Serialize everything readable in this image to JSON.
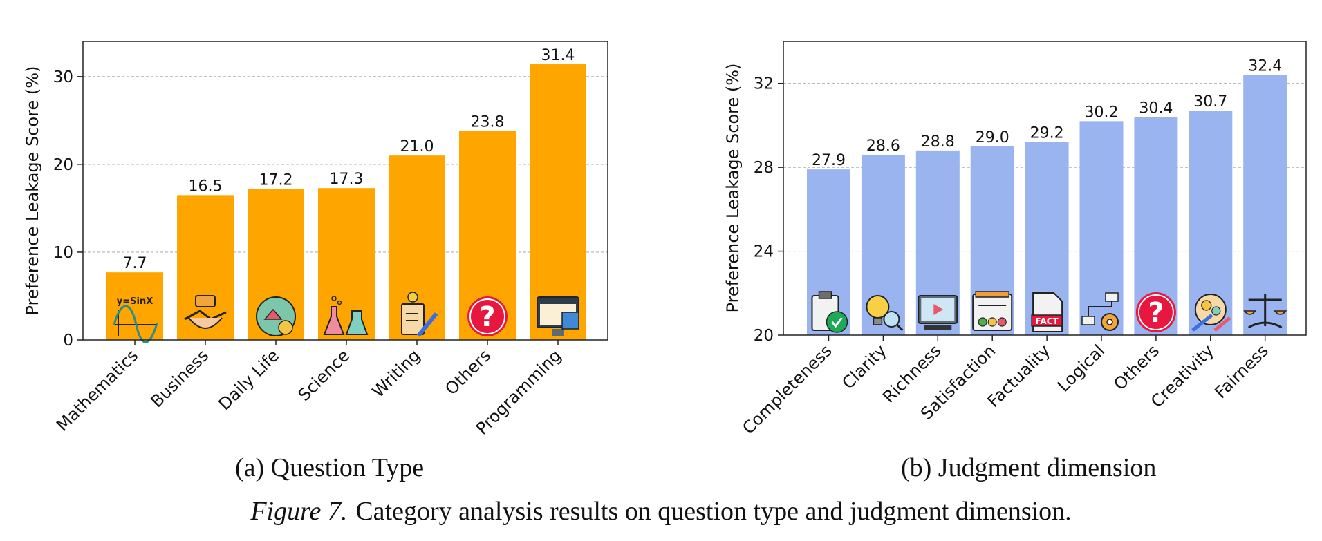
{
  "figure": {
    "sub_a": "(a)  Question Type",
    "sub_b": "(b)  Judgment dimension",
    "caption_label": "Figure 7.",
    "caption_text": "Category analysis results on question type and judgment dimension."
  },
  "colors": {
    "orange": "#FFA500",
    "blue": "#9AB4F0"
  },
  "chart_data": [
    {
      "type": "bar",
      "categories": [
        "Mathematics",
        "Business",
        "Daily Life",
        "Science",
        "Writing",
        "Others",
        "Programming"
      ],
      "values": [
        7.7,
        16.5,
        17.2,
        17.3,
        21.0,
        23.8,
        31.4
      ],
      "value_labels": [
        "7.7",
        "16.5",
        "17.2",
        "17.3",
        "21.0",
        "23.8",
        "31.4"
      ],
      "ylabel": "Preference Leakage Score (%)",
      "xlabel": "",
      "ylim": [
        0,
        34
      ],
      "yticks": [
        0,
        10,
        20,
        30
      ],
      "grid": true,
      "color": "#FFA500",
      "icons": [
        "sine-wave-icon",
        "handshake-icon",
        "globe-home-icon",
        "flask-icon",
        "notepad-icon",
        "question-icon",
        "computer-code-icon"
      ],
      "icon_texts": [
        "y=SinX",
        "",
        "",
        "",
        "",
        "",
        ""
      ]
    },
    {
      "type": "bar",
      "categories": [
        "Completeness",
        "Clarity",
        "Richness",
        "Satisfaction",
        "Factuality",
        "Logical",
        "Others",
        "Creativity",
        "Fairness"
      ],
      "values": [
        27.9,
        28.6,
        28.8,
        29.0,
        29.2,
        30.2,
        30.4,
        30.7,
        32.4
      ],
      "value_labels": [
        "27.9",
        "28.6",
        "28.8",
        "29.0",
        "29.2",
        "30.2",
        "30.4",
        "30.7",
        "32.4"
      ],
      "ylabel": "Preference Leakage Score (%)",
      "xlabel": "",
      "ylim": [
        20,
        34
      ],
      "yticks": [
        20,
        24,
        28,
        32
      ],
      "grid": true,
      "color": "#9AB4F0",
      "icons": [
        "clipboard-check-icon",
        "bulb-magnifier-icon",
        "media-board-icon",
        "survey-icon",
        "fact-document-icon",
        "flow-gear-icon",
        "question-icon",
        "creative-head-icon",
        "scales-icon"
      ],
      "icon_texts": [
        "",
        "",
        "",
        "",
        "FACT",
        "",
        "",
        "",
        ""
      ]
    }
  ]
}
